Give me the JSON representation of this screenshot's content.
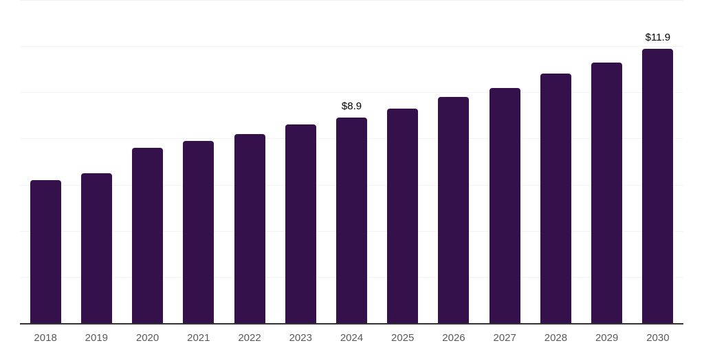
{
  "chart_data": {
    "type": "bar",
    "title": "",
    "categories": [
      "2018",
      "2019",
      "2020",
      "2021",
      "2022",
      "2023",
      "2024",
      "2025",
      "2026",
      "2027",
      "2028",
      "2029",
      "2030"
    ],
    "values": [
      6.2,
      6.5,
      7.6,
      7.9,
      8.2,
      8.6,
      8.9,
      9.3,
      9.8,
      10.2,
      10.8,
      11.3,
      11.9
    ],
    "data_labels": [
      null,
      null,
      null,
      null,
      null,
      null,
      "$8.9",
      null,
      null,
      null,
      null,
      null,
      "$11.9"
    ],
    "xlabel": "",
    "ylabel": "",
    "ylim": [
      0,
      14
    ],
    "gridline_step": 2,
    "grid": true,
    "legend_position": "none",
    "y_tick_labels_visible": false,
    "colors": {
      "bar": "#35114c",
      "gridline": "#f2f2f2",
      "axis_line": "#333333",
      "x_tick_label": "#595959",
      "data_label": "#000000",
      "background": "#ffffff"
    }
  }
}
